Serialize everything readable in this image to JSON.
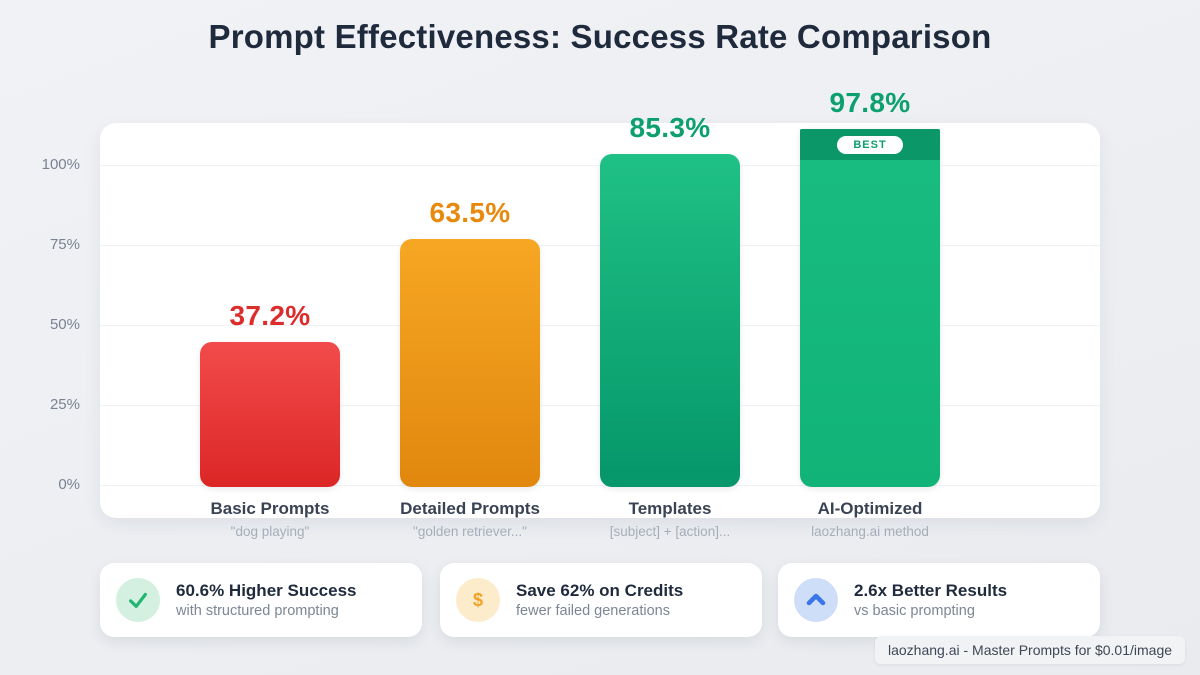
{
  "title": "Prompt Effectiveness: Success Rate Comparison",
  "chart_data": {
    "type": "bar",
    "categories": [
      "Basic Prompts",
      "Detailed Prompts",
      "Templates",
      "AI-Optimized"
    ],
    "subtitles": [
      "\"dog playing\"",
      "\"golden retriever...\"",
      "[subject] + [action]...",
      "laozhang.ai method"
    ],
    "values": [
      37.2,
      63.5,
      85.3,
      97.8
    ],
    "value_labels": [
      "37.2%",
      "63.5%",
      "85.3%",
      "97.8%"
    ],
    "value_label_colors": [
      "#dc2c2c",
      "#e8890c",
      "#0ba06d",
      "#0ba06d"
    ],
    "bar_colors": [
      [
        "#f24b4b",
        "#dc2626"
      ],
      [
        "#f6a723",
        "#e1870e"
      ],
      [
        "#1fc186",
        "#059669"
      ],
      [
        "#19bc81",
        "#11b378"
      ]
    ],
    "y_ticks": [
      "100%",
      "75%",
      "50%",
      "25%",
      "0%"
    ],
    "ylabel": "",
    "xlabel": "",
    "ylim": [
      0,
      100
    ],
    "grid": true,
    "legend": false,
    "best_badge": {
      "label": "BEST",
      "bar_index": 3,
      "cap_color": "#0c9768",
      "text_color": "#0d9f6e"
    }
  },
  "stat_cards": [
    {
      "icon": "check-icon",
      "icon_bg": "#d3f0e0",
      "icon_color": "#22b573",
      "title": "60.6% Higher Success",
      "subtitle": "with structured prompting"
    },
    {
      "icon": "dollar-icon",
      "icon_glyph": "$",
      "icon_bg": "#fdeccc",
      "icon_color": "#f0a226",
      "title": "Save 62% on Credits",
      "subtitle": "fewer failed generations"
    },
    {
      "icon": "chevron-up-icon",
      "icon_bg": "#cfdef8",
      "icon_color": "#3b76e8",
      "title": "2.6x Better Results",
      "subtitle": "vs basic prompting"
    }
  ],
  "watermark": {
    "text": "laozhang.ai - Master Prompts for $0.01/image"
  }
}
